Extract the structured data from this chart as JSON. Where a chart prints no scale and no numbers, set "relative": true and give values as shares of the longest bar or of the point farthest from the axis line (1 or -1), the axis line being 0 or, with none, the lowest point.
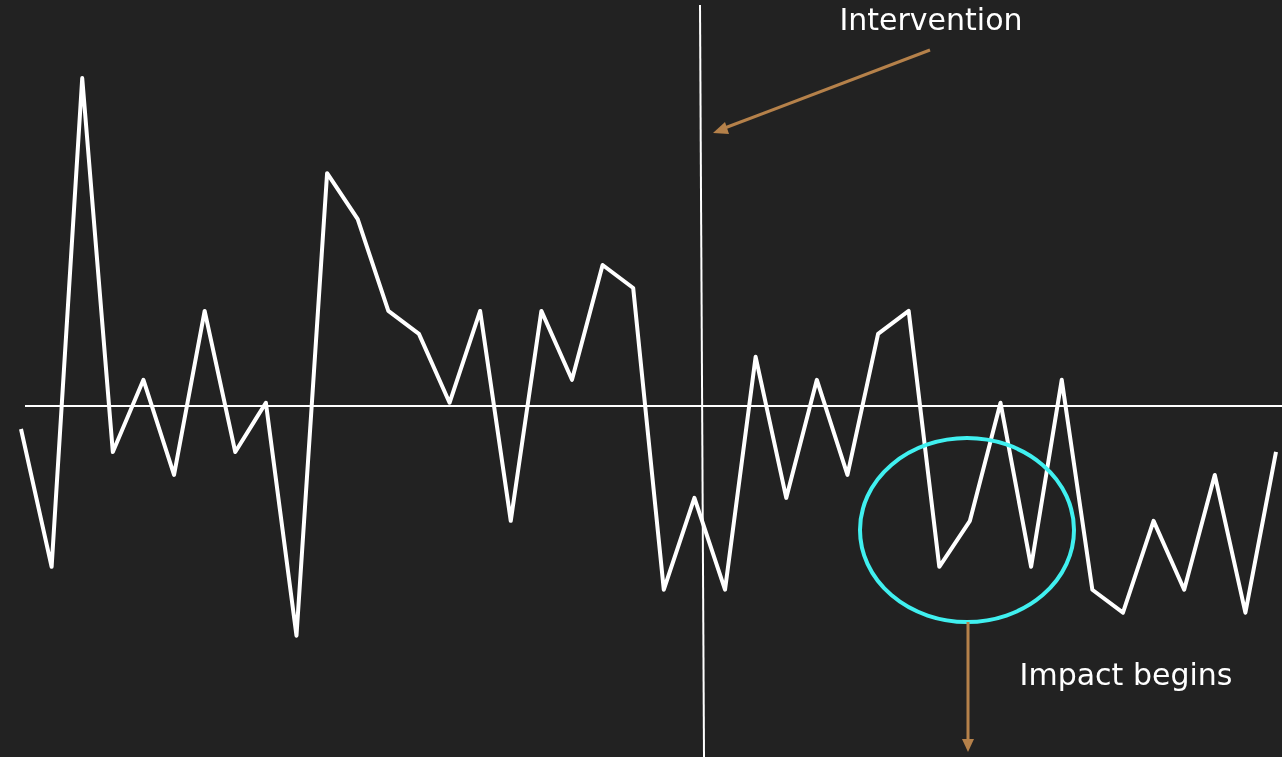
{
  "chart_data": {
    "type": "line",
    "relative": true,
    "legend": false,
    "marker": "none",
    "line_style": "solid",
    "categories": [
      null,
      null,
      null,
      null,
      null,
      null,
      null,
      null,
      null,
      null,
      null,
      null,
      null,
      null,
      null,
      null,
      null,
      null,
      null,
      null,
      null,
      null,
      null,
      null,
      null,
      null,
      null,
      null,
      null,
      null,
      null,
      null,
      null,
      null,
      null,
      null,
      null,
      null,
      null,
      null,
      null,
      null
    ],
    "series": [
      {
        "color": "#ffffff",
        "values": [
          -0.07,
          -0.49,
          1,
          -0.14,
          0.08,
          -0.21,
          0.29,
          -0.14,
          0.01,
          -0.7,
          0.71,
          0.57,
          0.29,
          0.22,
          0.01,
          0.29,
          -0.35,
          0.29,
          0.08,
          0.43,
          0.36,
          -0.56,
          -0.28,
          -0.56,
          0.15,
          -0.28,
          0.08,
          -0.21,
          0.22,
          0.29,
          -0.49,
          -0.35,
          0.01,
          -0.49,
          0.08,
          -0.56,
          -0.63,
          -0.35,
          -0.56,
          -0.21,
          -0.63,
          -0.14
        ]
      }
    ],
    "annotations": [
      "Intervention",
      "Impact begins"
    ]
  }
}
